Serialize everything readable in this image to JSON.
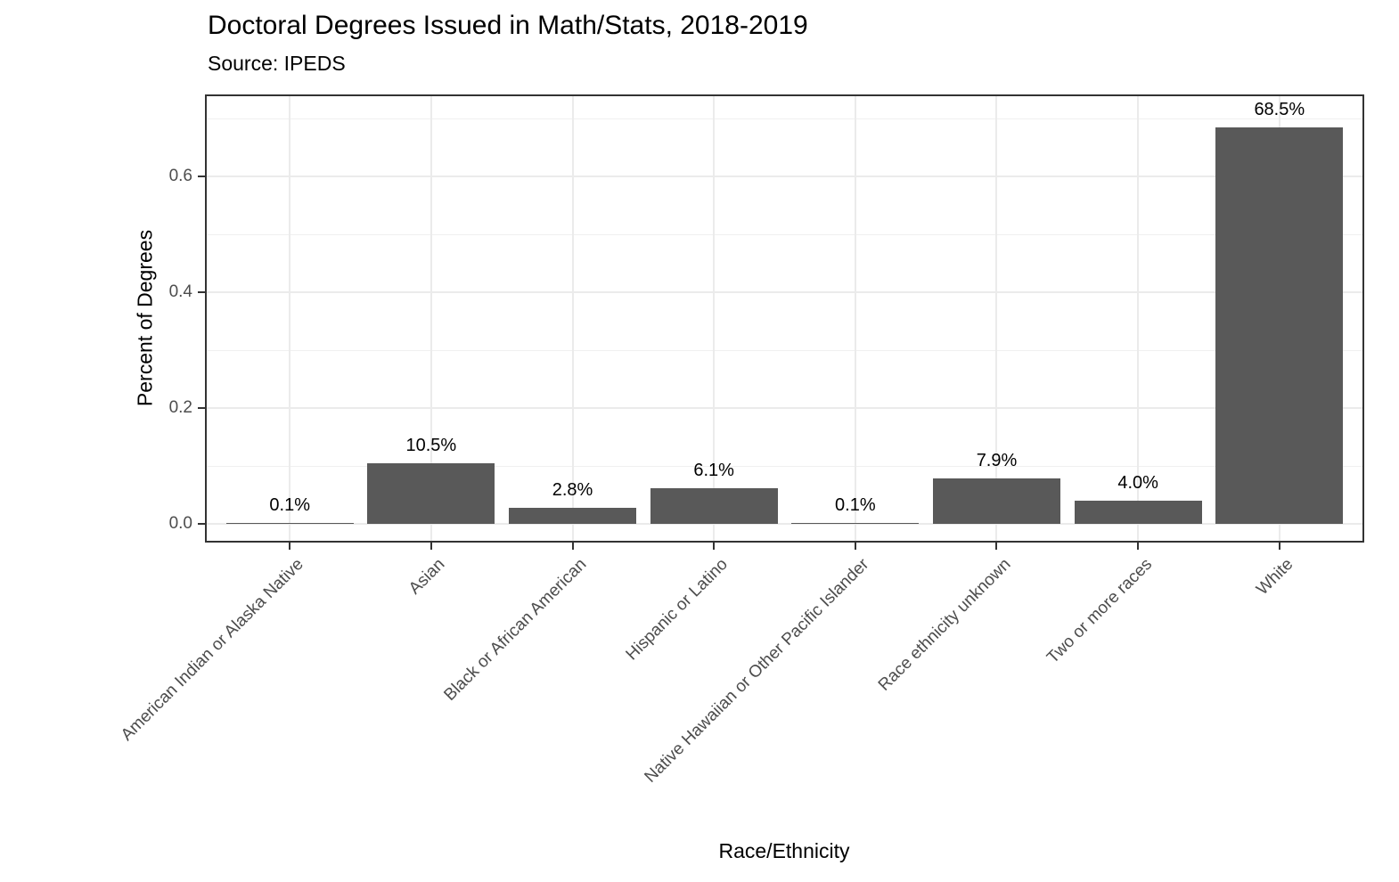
{
  "chart_data": {
    "type": "bar",
    "title": "Doctoral Degrees Issued in Math/Stats, 2018-2019",
    "subtitle": "Source: IPEDS",
    "xlabel": "Race/Ethnicity",
    "ylabel": "Percent of Degrees",
    "categories": [
      "American Indian or Alaska Native",
      "Asian",
      "Black or African American",
      "Hispanic or Latino",
      "Native Hawaiian or Other Pacific Islander",
      "Race ethnicity unknown",
      "Two or more races",
      "White"
    ],
    "values": [
      0.001,
      0.105,
      0.028,
      0.061,
      0.001,
      0.079,
      0.04,
      0.685
    ],
    "bar_labels": [
      "0.1%",
      "10.5%",
      "2.8%",
      "6.1%",
      "0.1%",
      "7.9%",
      "4.0%",
      "68.5%"
    ],
    "y_ticks": [
      0.0,
      0.2,
      0.4,
      0.6
    ],
    "y_tick_labels": [
      "0.0",
      "0.2",
      "0.4",
      "0.6"
    ],
    "y_minor_ticks": [
      0.1,
      0.3,
      0.5,
      0.7
    ],
    "ylim": [
      -0.034,
      0.742
    ],
    "grid": "horizontal major+minor, vertical major at category centers",
    "legend": "none",
    "bar_width_fraction": 0.9,
    "x_label_angle_deg": 45,
    "colors": {
      "bar_fill": "#595959",
      "grid_major": "#ebebeb",
      "grid_minor": "#f0f0f0",
      "panel_border": "#333333",
      "tick_mark": "#333333",
      "axis_text": "#4d4d4d",
      "title_text": "#000000",
      "background": "#ffffff"
    }
  }
}
